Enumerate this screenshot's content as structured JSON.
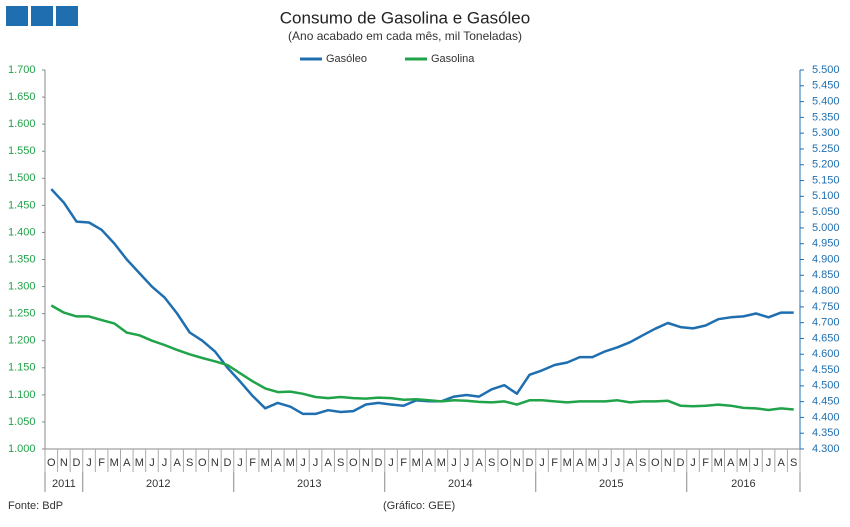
{
  "chart_data": {
    "type": "line",
    "title": "Consumo de Gasolina e Gasóleo",
    "subtitle": "(Ano acabado em cada mês,  mil Toneladas)",
    "source": "Fonte: BdP",
    "credit": "(Gráfico: GEE)",
    "categories": [
      "O",
      "N",
      "D",
      "J",
      "F",
      "M",
      "A",
      "M",
      "J",
      "J",
      "A",
      "S",
      "O",
      "N",
      "D",
      "J",
      "F",
      "M",
      "A",
      "M",
      "J",
      "J",
      "A",
      "S",
      "O",
      "N",
      "D",
      "J",
      "F",
      "M",
      "A",
      "M",
      "J",
      "J",
      "A",
      "S",
      "O",
      "N",
      "D",
      "J",
      "F",
      "M",
      "A",
      "M",
      "J",
      "J",
      "A",
      "S",
      "O",
      "N",
      "D",
      "J",
      "F",
      "M",
      "A",
      "M",
      "J",
      "J",
      "A",
      "S"
    ],
    "years": [
      "2011",
      "2012",
      "2013",
      "2014",
      "2015",
      "2016"
    ],
    "ylim": [
      1000,
      1700
    ],
    "yticks": [
      {
        "value": 1000,
        "label": "1.000"
      },
      {
        "value": 1050,
        "label": "1.050"
      },
      {
        "value": 1100,
        "label": "1.100"
      },
      {
        "value": 1150,
        "label": "1.150"
      },
      {
        "value": 1200,
        "label": "1.200"
      },
      {
        "value": 1250,
        "label": "1.250"
      },
      {
        "value": 1300,
        "label": "1.300"
      },
      {
        "value": 1350,
        "label": "1.350"
      },
      {
        "value": 1400,
        "label": "1.400"
      },
      {
        "value": 1450,
        "label": "1.450"
      },
      {
        "value": 1500,
        "label": "1.500"
      },
      {
        "value": 1550,
        "label": "1.550"
      },
      {
        "value": 1600,
        "label": "1.600"
      },
      {
        "value": 1650,
        "label": "1.650"
      },
      {
        "value": 1700,
        "label": "1.700"
      }
    ],
    "y2lim": [
      4300,
      5500
    ],
    "y2ticks": [
      {
        "value": 4300,
        "label": "4.300"
      },
      {
        "value": 4350,
        "label": "4.350"
      },
      {
        "value": 4400,
        "label": "4.400"
      },
      {
        "value": 4450,
        "label": "4.450"
      },
      {
        "value": 4500,
        "label": "4.500"
      },
      {
        "value": 4550,
        "label": "4.550"
      },
      {
        "value": 4600,
        "label": "4.600"
      },
      {
        "value": 4650,
        "label": "4.650"
      },
      {
        "value": 4700,
        "label": "4.700"
      },
      {
        "value": 4750,
        "label": "4.750"
      },
      {
        "value": 4800,
        "label": "4.800"
      },
      {
        "value": 4850,
        "label": "4.850"
      },
      {
        "value": 4900,
        "label": "4.900"
      },
      {
        "value": 4950,
        "label": "4.950"
      },
      {
        "value": 5000,
        "label": "5.000"
      },
      {
        "value": 5050,
        "label": "5.050"
      },
      {
        "value": 5100,
        "label": "5.100"
      },
      {
        "value": 5150,
        "label": "5.150"
      },
      {
        "value": 5200,
        "label": "5.200"
      },
      {
        "value": 5250,
        "label": "5.250"
      },
      {
        "value": 5300,
        "label": "5.300"
      },
      {
        "value": 5350,
        "label": "5.350"
      },
      {
        "value": 5400,
        "label": "5.400"
      },
      {
        "value": 5450,
        "label": "5.450"
      },
      {
        "value": 5500,
        "label": "5.500"
      }
    ],
    "series": [
      {
        "name": "Gasóleo",
        "color": "#1f6fb0",
        "axis": "y2",
        "values": [
          5123,
          5080,
          5020,
          5017,
          4994,
          4951,
          4900,
          4857,
          4814,
          4780,
          4729,
          4669,
          4643,
          4609,
          4557,
          4514,
          4468,
          4429,
          4446,
          4434,
          4411,
          4411,
          4423,
          4417,
          4420,
          4441,
          4446,
          4441,
          4437,
          4454,
          4451,
          4451,
          4466,
          4471,
          4466,
          4489,
          4502,
          4475,
          4535,
          4549,
          4566,
          4574,
          4591,
          4591,
          4609,
          4622,
          4638,
          4660,
          4681,
          4699,
          4686,
          4682,
          4691,
          4711,
          4717,
          4720,
          4729,
          4717,
          4732,
          4732
        ]
      },
      {
        "name": "Gasolina",
        "color": "#21a34a",
        "values": [
          1265,
          1252,
          1245,
          1245,
          1238,
          1232,
          1215,
          1210,
          1200,
          1192,
          1183,
          1175,
          1168,
          1162,
          1155,
          1140,
          1125,
          1112,
          1105,
          1106,
          1102,
          1096,
          1094,
          1096,
          1094,
          1093,
          1095,
          1094,
          1091,
          1092,
          1090,
          1088,
          1090,
          1089,
          1087,
          1086,
          1088,
          1082,
          1090,
          1090,
          1088,
          1086,
          1088,
          1088,
          1088,
          1090,
          1086,
          1088,
          1088,
          1089,
          1080,
          1079,
          1080,
          1082,
          1080,
          1076,
          1075,
          1072,
          1075,
          1073
        ]
      }
    ]
  }
}
